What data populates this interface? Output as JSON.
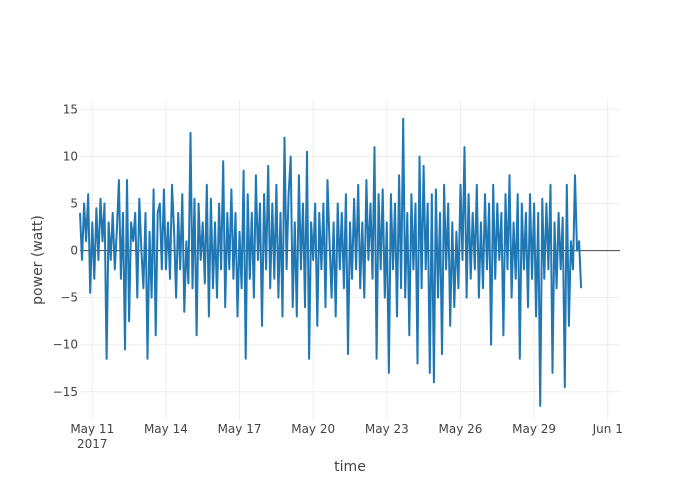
{
  "chart_data": {
    "type": "line",
    "xlabel": "time",
    "ylabel": "power (watt)",
    "x_range": [
      "2017-05-10T12:00",
      "2017-06-01T12:00"
    ],
    "ylim": [
      -18,
      16
    ],
    "y_ticks": [
      {
        "value": 15,
        "label": "15"
      },
      {
        "value": 10,
        "label": "10"
      },
      {
        "value": 5,
        "label": "5"
      },
      {
        "value": 0,
        "label": "0"
      },
      {
        "value": -5,
        "label": "−5"
      },
      {
        "value": -10,
        "label": "−10"
      },
      {
        "value": -15,
        "label": "−15"
      }
    ],
    "x_ticks": [
      {
        "value": "2017-05-11",
        "label": "May 11",
        "sublabel": "2017"
      },
      {
        "value": "2017-05-14",
        "label": "May 14",
        "sublabel": ""
      },
      {
        "value": "2017-05-17",
        "label": "May 17",
        "sublabel": ""
      },
      {
        "value": "2017-05-20",
        "label": "May 20",
        "sublabel": ""
      },
      {
        "value": "2017-05-23",
        "label": "May 23",
        "sublabel": ""
      },
      {
        "value": "2017-05-26",
        "label": "May 26",
        "sublabel": ""
      },
      {
        "value": "2017-05-29",
        "label": "May 29",
        "sublabel": ""
      },
      {
        "value": "2017-06-01",
        "label": "Jun 1",
        "sublabel": ""
      }
    ],
    "grid": true,
    "series": [
      {
        "color": "#1f77b4",
        "points": [
          [
            "2017-05-10T12:00",
            4
          ],
          [
            "2017-05-10T14:00",
            -1
          ],
          [
            "2017-05-10T16:00",
            5
          ],
          [
            "2017-05-10T18:00",
            1
          ],
          [
            "2017-05-10T20:00",
            6
          ],
          [
            "2017-05-10T22:00",
            -4.5
          ],
          [
            "2017-05-11T00:00",
            3
          ],
          [
            "2017-05-11T02:00",
            -3
          ],
          [
            "2017-05-11T04:00",
            4.5
          ],
          [
            "2017-05-11T06:00",
            -1
          ],
          [
            "2017-05-11T08:00",
            5.5
          ],
          [
            "2017-05-11T10:00",
            1
          ],
          [
            "2017-05-11T12:00",
            5
          ],
          [
            "2017-05-11T14:00",
            -11.5
          ],
          [
            "2017-05-11T16:00",
            3
          ],
          [
            "2017-05-11T18:00",
            -1
          ],
          [
            "2017-05-11T20:00",
            4
          ],
          [
            "2017-05-11T22:00",
            -2
          ],
          [
            "2017-05-12T00:00",
            2
          ],
          [
            "2017-05-12T02:00",
            7.5
          ],
          [
            "2017-05-12T04:00",
            -3
          ],
          [
            "2017-05-12T06:00",
            4
          ],
          [
            "2017-05-12T08:00",
            -10.5
          ],
          [
            "2017-05-12T10:00",
            7.5
          ],
          [
            "2017-05-12T12:00",
            -7.5
          ],
          [
            "2017-05-12T14:00",
            3
          ],
          [
            "2017-05-12T16:00",
            1
          ],
          [
            "2017-05-12T18:00",
            4
          ],
          [
            "2017-05-12T20:00",
            -5
          ],
          [
            "2017-05-12T22:00",
            5.5
          ],
          [
            "2017-05-13T00:00",
            0
          ],
          [
            "2017-05-13T02:00",
            -4
          ],
          [
            "2017-05-13T04:00",
            4
          ],
          [
            "2017-05-13T06:00",
            -11.5
          ],
          [
            "2017-05-13T08:00",
            2
          ],
          [
            "2017-05-13T10:00",
            -5
          ],
          [
            "2017-05-13T12:00",
            6.5
          ],
          [
            "2017-05-13T14:00",
            -9
          ],
          [
            "2017-05-13T16:00",
            4
          ],
          [
            "2017-05-13T18:00",
            5
          ],
          [
            "2017-05-13T20:00",
            -2
          ],
          [
            "2017-05-13T22:00",
            6.5
          ],
          [
            "2017-05-14T00:00",
            -2
          ],
          [
            "2017-05-14T02:00",
            3
          ],
          [
            "2017-05-14T04:00",
            -3
          ],
          [
            "2017-05-14T06:00",
            7
          ],
          [
            "2017-05-14T08:00",
            2
          ],
          [
            "2017-05-14T10:00",
            -5
          ],
          [
            "2017-05-14T12:00",
            4
          ],
          [
            "2017-05-14T14:00",
            -2
          ],
          [
            "2017-05-14T16:00",
            6
          ],
          [
            "2017-05-14T18:00",
            -6.5
          ],
          [
            "2017-05-14T20:00",
            1
          ],
          [
            "2017-05-14T22:00",
            -3.5
          ],
          [
            "2017-05-15T00:00",
            12.5
          ],
          [
            "2017-05-15T02:00",
            -4
          ],
          [
            "2017-05-15T04:00",
            5.5
          ],
          [
            "2017-05-15T06:00",
            -9
          ],
          [
            "2017-05-15T08:00",
            5
          ],
          [
            "2017-05-15T10:00",
            -1
          ],
          [
            "2017-05-15T12:00",
            3
          ],
          [
            "2017-05-15T14:00",
            -3.5
          ],
          [
            "2017-05-15T16:00",
            7
          ],
          [
            "2017-05-15T18:00",
            -7
          ],
          [
            "2017-05-15T20:00",
            5.5
          ],
          [
            "2017-05-15T22:00",
            -4
          ],
          [
            "2017-05-16T00:00",
            3
          ],
          [
            "2017-05-16T02:00",
            -5
          ],
          [
            "2017-05-16T04:00",
            5
          ],
          [
            "2017-05-16T06:00",
            -2
          ],
          [
            "2017-05-16T08:00",
            9.5
          ],
          [
            "2017-05-16T10:00",
            -6
          ],
          [
            "2017-05-16T12:00",
            4
          ],
          [
            "2017-05-16T14:00",
            -2
          ],
          [
            "2017-05-16T16:00",
            6.5
          ],
          [
            "2017-05-16T18:00",
            -3
          ],
          [
            "2017-05-16T20:00",
            4
          ],
          [
            "2017-05-16T22:00",
            -7
          ],
          [
            "2017-05-17T00:00",
            2
          ],
          [
            "2017-05-17T02:00",
            -4
          ],
          [
            "2017-05-17T04:00",
            8.5
          ],
          [
            "2017-05-17T06:00",
            -11.5
          ],
          [
            "2017-05-17T08:00",
            6
          ],
          [
            "2017-05-17T10:00",
            -3
          ],
          [
            "2017-05-17T12:00",
            4
          ],
          [
            "2017-05-17T14:00",
            -5
          ],
          [
            "2017-05-17T16:00",
            8
          ],
          [
            "2017-05-17T18:00",
            -1
          ],
          [
            "2017-05-17T20:00",
            5
          ],
          [
            "2017-05-17T22:00",
            -8
          ],
          [
            "2017-05-18T00:00",
            6
          ],
          [
            "2017-05-18T02:00",
            -2
          ],
          [
            "2017-05-18T04:00",
            9
          ],
          [
            "2017-05-18T06:00",
            -4
          ],
          [
            "2017-05-18T08:00",
            5
          ],
          [
            "2017-05-18T10:00",
            -3
          ],
          [
            "2017-05-18T12:00",
            7
          ],
          [
            "2017-05-18T14:00",
            -5
          ],
          [
            "2017-05-18T16:00",
            4
          ],
          [
            "2017-05-18T18:00",
            -7
          ],
          [
            "2017-05-18T20:00",
            12
          ],
          [
            "2017-05-18T22:00",
            -2
          ],
          [
            "2017-05-19T00:00",
            6
          ],
          [
            "2017-05-19T02:00",
            10
          ],
          [
            "2017-05-19T04:00",
            -6
          ],
          [
            "2017-05-19T06:00",
            3
          ],
          [
            "2017-05-19T08:00",
            -7
          ],
          [
            "2017-05-19T10:00",
            8
          ],
          [
            "2017-05-19T12:00",
            -2
          ],
          [
            "2017-05-19T14:00",
            5
          ],
          [
            "2017-05-19T16:00",
            -6
          ],
          [
            "2017-05-19T18:00",
            10.5
          ],
          [
            "2017-05-19T20:00",
            -11.5
          ],
          [
            "2017-05-19T22:00",
            3
          ],
          [
            "2017-05-20T00:00",
            -1
          ],
          [
            "2017-05-20T02:00",
            5
          ],
          [
            "2017-05-20T04:00",
            -8
          ],
          [
            "2017-05-20T06:00",
            4
          ],
          [
            "2017-05-20T08:00",
            -2
          ],
          [
            "2017-05-20T10:00",
            5
          ],
          [
            "2017-05-20T12:00",
            -6
          ],
          [
            "2017-05-20T14:00",
            7.5
          ],
          [
            "2017-05-20T16:00",
            1
          ],
          [
            "2017-05-20T18:00",
            -5
          ],
          [
            "2017-05-20T20:00",
            3
          ],
          [
            "2017-05-20T22:00",
            -7
          ],
          [
            "2017-05-21T00:00",
            5
          ],
          [
            "2017-05-21T02:00",
            -2
          ],
          [
            "2017-05-21T04:00",
            4
          ],
          [
            "2017-05-21T06:00",
            -4
          ],
          [
            "2017-05-21T08:00",
            6
          ],
          [
            "2017-05-21T10:00",
            -11
          ],
          [
            "2017-05-21T12:00",
            3
          ],
          [
            "2017-05-21T14:00",
            -3
          ],
          [
            "2017-05-21T16:00",
            5.5
          ],
          [
            "2017-05-21T18:00",
            -2
          ],
          [
            "2017-05-21T20:00",
            7
          ],
          [
            "2017-05-21T22:00",
            -4
          ],
          [
            "2017-05-22T00:00",
            3
          ],
          [
            "2017-05-22T02:00",
            -5
          ],
          [
            "2017-05-22T04:00",
            7.5
          ],
          [
            "2017-05-22T06:00",
            -1
          ],
          [
            "2017-05-22T08:00",
            5
          ],
          [
            "2017-05-22T10:00",
            -3
          ],
          [
            "2017-05-22T12:00",
            11
          ],
          [
            "2017-05-22T14:00",
            -11.5
          ],
          [
            "2017-05-22T16:00",
            6
          ],
          [
            "2017-05-22T18:00",
            -2
          ],
          [
            "2017-05-22T20:00",
            6.5
          ],
          [
            "2017-05-22T22:00",
            -5
          ],
          [
            "2017-05-23T00:00",
            3
          ],
          [
            "2017-05-23T02:00",
            -13
          ],
          [
            "2017-05-23T04:00",
            6
          ],
          [
            "2017-05-23T06:00",
            -2
          ],
          [
            "2017-05-23T08:00",
            5
          ],
          [
            "2017-05-23T10:00",
            -7
          ],
          [
            "2017-05-23T12:00",
            8
          ],
          [
            "2017-05-23T14:00",
            -4
          ],
          [
            "2017-05-23T16:00",
            14
          ],
          [
            "2017-05-23T18:00",
            -5
          ],
          [
            "2017-05-23T20:00",
            4
          ],
          [
            "2017-05-23T22:00",
            -9
          ],
          [
            "2017-05-24T00:00",
            6
          ],
          [
            "2017-05-24T02:00",
            -2
          ],
          [
            "2017-05-24T04:00",
            5
          ],
          [
            "2017-05-24T06:00",
            -12
          ],
          [
            "2017-05-24T08:00",
            10
          ],
          [
            "2017-05-24T10:00",
            -4
          ],
          [
            "2017-05-24T12:00",
            9
          ],
          [
            "2017-05-24T14:00",
            -2
          ],
          [
            "2017-05-24T16:00",
            5
          ],
          [
            "2017-05-24T18:00",
            -13
          ],
          [
            "2017-05-24T20:00",
            6
          ],
          [
            "2017-05-24T22:00",
            -14
          ],
          [
            "2017-05-25T00:00",
            6.5
          ],
          [
            "2017-05-25T02:00",
            -5
          ],
          [
            "2017-05-25T04:00",
            4
          ],
          [
            "2017-05-25T06:00",
            -11
          ],
          [
            "2017-05-25T08:00",
            7
          ],
          [
            "2017-05-25T10:00",
            -2
          ],
          [
            "2017-05-25T12:00",
            5
          ],
          [
            "2017-05-25T14:00",
            -8
          ],
          [
            "2017-05-25T16:00",
            3
          ],
          [
            "2017-05-25T18:00",
            -6
          ],
          [
            "2017-05-25T20:00",
            2
          ],
          [
            "2017-05-25T22:00",
            -4
          ],
          [
            "2017-05-26T00:00",
            7
          ],
          [
            "2017-05-26T02:00",
            -1
          ],
          [
            "2017-05-26T04:00",
            11
          ],
          [
            "2017-05-26T06:00",
            -5
          ],
          [
            "2017-05-26T08:00",
            6
          ],
          [
            "2017-05-26T10:00",
            -3
          ],
          [
            "2017-05-26T12:00",
            4
          ],
          [
            "2017-05-26T14:00",
            -2
          ],
          [
            "2017-05-26T16:00",
            7
          ],
          [
            "2017-05-26T18:00",
            -5
          ],
          [
            "2017-05-26T20:00",
            3
          ],
          [
            "2017-05-26T22:00",
            -4
          ],
          [
            "2017-05-27T00:00",
            6
          ],
          [
            "2017-05-27T02:00",
            -2
          ],
          [
            "2017-05-27T04:00",
            5
          ],
          [
            "2017-05-27T06:00",
            -10
          ],
          [
            "2017-05-27T08:00",
            7
          ],
          [
            "2017-05-27T10:00",
            -3
          ],
          [
            "2017-05-27T12:00",
            5
          ],
          [
            "2017-05-27T14:00",
            -1
          ],
          [
            "2017-05-27T16:00",
            4
          ],
          [
            "2017-05-27T18:00",
            -9
          ],
          [
            "2017-05-27T20:00",
            6
          ],
          [
            "2017-05-27T22:00",
            -2
          ],
          [
            "2017-05-28T00:00",
            8
          ],
          [
            "2017-05-28T02:00",
            -5
          ],
          [
            "2017-05-28T04:00",
            3
          ],
          [
            "2017-05-28T06:00",
            -3
          ],
          [
            "2017-05-28T08:00",
            6
          ],
          [
            "2017-05-28T10:00",
            -11.5
          ],
          [
            "2017-05-28T12:00",
            5
          ],
          [
            "2017-05-28T14:00",
            -2
          ],
          [
            "2017-05-28T16:00",
            4
          ],
          [
            "2017-05-28T18:00",
            -6
          ],
          [
            "2017-05-28T20:00",
            6
          ],
          [
            "2017-05-28T22:00",
            -3
          ],
          [
            "2017-05-29T00:00",
            5
          ],
          [
            "2017-05-29T02:00",
            -7
          ],
          [
            "2017-05-29T04:00",
            4
          ],
          [
            "2017-05-29T06:00",
            -16.5
          ],
          [
            "2017-05-29T08:00",
            5.5
          ],
          [
            "2017-05-29T10:00",
            -3
          ],
          [
            "2017-05-29T12:00",
            5
          ],
          [
            "2017-05-29T14:00",
            -2
          ],
          [
            "2017-05-29T16:00",
            7
          ],
          [
            "2017-05-29T18:00",
            -13
          ],
          [
            "2017-05-29T20:00",
            3
          ],
          [
            "2017-05-29T22:00",
            -4
          ],
          [
            "2017-05-30T00:00",
            4
          ],
          [
            "2017-05-30T02:00",
            -2
          ],
          [
            "2017-05-30T04:00",
            3.5
          ],
          [
            "2017-05-30T06:00",
            -14.5
          ],
          [
            "2017-05-30T08:00",
            7
          ],
          [
            "2017-05-30T10:00",
            -8
          ],
          [
            "2017-05-30T12:00",
            1
          ],
          [
            "2017-05-30T14:00",
            -2
          ],
          [
            "2017-05-30T16:00",
            8
          ],
          [
            "2017-05-30T18:00",
            0
          ],
          [
            "2017-05-30T20:00",
            1
          ],
          [
            "2017-05-30T22:00",
            -4
          ]
        ]
      }
    ]
  }
}
